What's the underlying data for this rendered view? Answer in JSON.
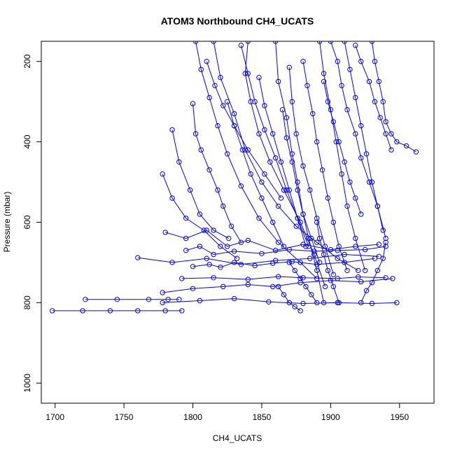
{
  "chart_data": {
    "type": "line",
    "title": "ATOM3 Northbound CH4_UCATS",
    "xlabel": "CH4_UCATS",
    "ylabel": "Pressure (mbar)",
    "xlim": [
      1690,
      1975
    ],
    "ylim": [
      1050,
      150
    ],
    "y_inverted": true,
    "x_ticks": [
      1700,
      1750,
      1800,
      1850,
      1900,
      1950
    ],
    "y_ticks": [
      200,
      400,
      600,
      800,
      1000
    ],
    "marker": "open-circle",
    "grid": false,
    "legend": "none",
    "line_color": "#0000ff",
    "series": [
      {
        "x": [
          1698,
          1720,
          1740,
          1760,
          1780,
          1792
        ],
        "y": [
          820,
          820,
          820,
          820,
          820,
          820
        ]
      },
      {
        "x": [
          1722,
          1745,
          1768,
          1782,
          1790
        ],
        "y": [
          792,
          792,
          792,
          792,
          792
        ]
      },
      {
        "x": [
          1778,
          1805,
          1830,
          1855,
          1880,
          1905,
          1930,
          1948
        ],
        "y": [
          800,
          795,
          790,
          798,
          802,
          800,
          802,
          800
        ]
      },
      {
        "x": [
          1760,
          1785,
          1810,
          1835,
          1860,
          1885,
          1910,
          1935
        ],
        "y": [
          688,
          700,
          690,
          705,
          695,
          690,
          680,
          685
        ]
      },
      {
        "x": [
          1792,
          1815,
          1840,
          1862,
          1880,
          1905,
          1920,
          1940
        ],
        "y": [
          740,
          738,
          742,
          735,
          738,
          740,
          736,
          738
        ]
      },
      {
        "x": [
          1778,
          1800,
          1822,
          1840,
          1858,
          1878,
          1900,
          1922,
          1945
        ],
        "y": [
          775,
          765,
          760,
          755,
          760,
          750,
          745,
          748,
          740
        ]
      },
      {
        "x": [
          1800,
          1812,
          1820,
          1830,
          1845,
          1858,
          1872,
          1890,
          1910,
          1932
        ],
        "y": [
          710,
          705,
          712,
          700,
          708,
          702,
          698,
          705,
          700,
          690
        ]
      },
      {
        "x": [
          1780,
          1795,
          1810,
          1825,
          1840,
          1860,
          1880,
          1900,
          1918,
          1935
        ],
        "y": [
          625,
          640,
          620,
          660,
          645,
          670,
          655,
          668,
          660,
          655
        ]
      },
      {
        "x": [
          1795,
          1805,
          1815,
          1830,
          1850,
          1870,
          1888,
          1905,
          1925,
          1940
        ],
        "y": [
          670,
          660,
          680,
          672,
          678,
          668,
          672,
          670,
          668,
          660
        ]
      },
      {
        "x": [
          1815,
          1820,
          1830,
          1838,
          1850,
          1862,
          1875,
          1890,
          1905,
          1920
        ],
        "y": [
          150,
          240,
          330,
          420,
          500,
          560,
          610,
          650,
          690,
          720
        ]
      },
      {
        "x": [
          1802,
          1806,
          1812,
          1818,
          1825,
          1835,
          1848,
          1862,
          1878,
          1890
        ],
        "y": [
          150,
          220,
          290,
          360,
          430,
          510,
          590,
          650,
          700,
          740
        ]
      },
      {
        "x": [
          1840,
          1838,
          1842,
          1848,
          1856,
          1866,
          1878,
          1888,
          1896
        ],
        "y": [
          150,
          230,
          300,
          380,
          450,
          520,
          600,
          680,
          760
        ]
      },
      {
        "x": [
          1860,
          1862,
          1868,
          1872,
          1876,
          1880,
          1884,
          1890,
          1895
        ],
        "y": [
          150,
          250,
          340,
          430,
          500,
          580,
          640,
          720,
          800
        ]
      },
      {
        "x": [
          1892,
          1895,
          1900,
          1904,
          1908,
          1912,
          1918,
          1925
        ],
        "y": [
          150,
          230,
          320,
          400,
          480,
          560,
          640,
          720
        ]
      },
      {
        "x": [
          1910,
          1914,
          1918,
          1922,
          1926,
          1930,
          1934,
          1938
        ],
        "y": [
          150,
          220,
          290,
          360,
          430,
          500,
          560,
          620
        ]
      },
      {
        "x": [
          1930,
          1932,
          1935,
          1938,
          1940,
          1944,
          1948,
          1955,
          1962
        ],
        "y": [
          150,
          200,
          250,
          300,
          350,
          380,
          400,
          410,
          425
        ]
      },
      {
        "x": [
          1900,
          1905,
          1908,
          1912,
          1918,
          1922,
          1928,
          1934,
          1940
        ],
        "y": [
          150,
          200,
          260,
          320,
          380,
          440,
          500,
          560,
          640
        ]
      },
      {
        "x": [
          1880,
          1883,
          1887,
          1890,
          1894,
          1898,
          1902,
          1906,
          1912
        ],
        "y": [
          200,
          260,
          330,
          400,
          470,
          540,
          600,
          660,
          720
        ]
      },
      {
        "x": [
          1870,
          1872,
          1875,
          1880,
          1885,
          1890,
          1896,
          1902
        ],
        "y": [
          215,
          300,
          380,
          460,
          520,
          590,
          660,
          730
        ]
      },
      {
        "x": [
          1835,
          1840,
          1845,
          1852,
          1860,
          1868,
          1876,
          1884
        ],
        "y": [
          160,
          230,
          300,
          370,
          440,
          520,
          590,
          660
        ]
      },
      {
        "x": [
          1800,
          1802,
          1806,
          1812,
          1818,
          1822,
          1828,
          1835
        ],
        "y": [
          305,
          380,
          420,
          470,
          520,
          560,
          610,
          650
        ]
      },
      {
        "x": [
          1785,
          1790,
          1798,
          1805,
          1815,
          1826
        ],
        "y": [
          370,
          450,
          520,
          580,
          620,
          640
        ]
      },
      {
        "x": [
          1778,
          1785,
          1795,
          1808,
          1820,
          1832
        ],
        "y": [
          480,
          540,
          590,
          620,
          660,
          690
        ]
      },
      {
        "x": [
          1810,
          1816,
          1822,
          1830,
          1840,
          1852,
          1864
        ],
        "y": [
          200,
          260,
          310,
          360,
          420,
          480,
          540
        ]
      },
      {
        "x": [
          1918,
          1922,
          1928,
          1932,
          1936,
          1940,
          1944
        ],
        "y": [
          160,
          200,
          250,
          300,
          340,
          380,
          420
        ]
      },
      {
        "x": [
          1895,
          1898,
          1902,
          1906,
          1910,
          1914,
          1918,
          1922
        ],
        "y": [
          250,
          300,
          350,
          400,
          450,
          500,
          540,
          580
        ]
      },
      {
        "x": [
          1865,
          1868,
          1872,
          1876,
          1880,
          1886,
          1892
        ],
        "y": [
          320,
          390,
          450,
          520,
          580,
          640,
          700
        ]
      },
      {
        "x": [
          1848,
          1852,
          1858,
          1864,
          1870,
          1876,
          1882
        ],
        "y": [
          240,
          310,
          380,
          450,
          520,
          590,
          660
        ]
      },
      {
        "x": [
          1825,
          1830,
          1836,
          1842,
          1850,
          1858,
          1866
        ],
        "y": [
          300,
          360,
          420,
          480,
          540,
          600,
          660
        ]
      },
      {
        "x": [
          1890,
          1892,
          1895,
          1898,
          1902,
          1906
        ],
        "y": [
          600,
          640,
          680,
          720,
          760,
          800
        ]
      },
      {
        "x": [
          1870,
          1874,
          1878,
          1882,
          1886,
          1890
        ],
        "y": [
          700,
          720,
          740,
          760,
          780,
          800
        ]
      },
      {
        "x": [
          1862,
          1866,
          1870,
          1874,
          1878
        ],
        "y": [
          760,
          780,
          800,
          810,
          820
        ]
      },
      {
        "x": [
          1940,
          1938,
          1934,
          1930,
          1926,
          1922
        ],
        "y": [
          650,
          690,
          720,
          750,
          770,
          800
        ]
      }
    ]
  }
}
